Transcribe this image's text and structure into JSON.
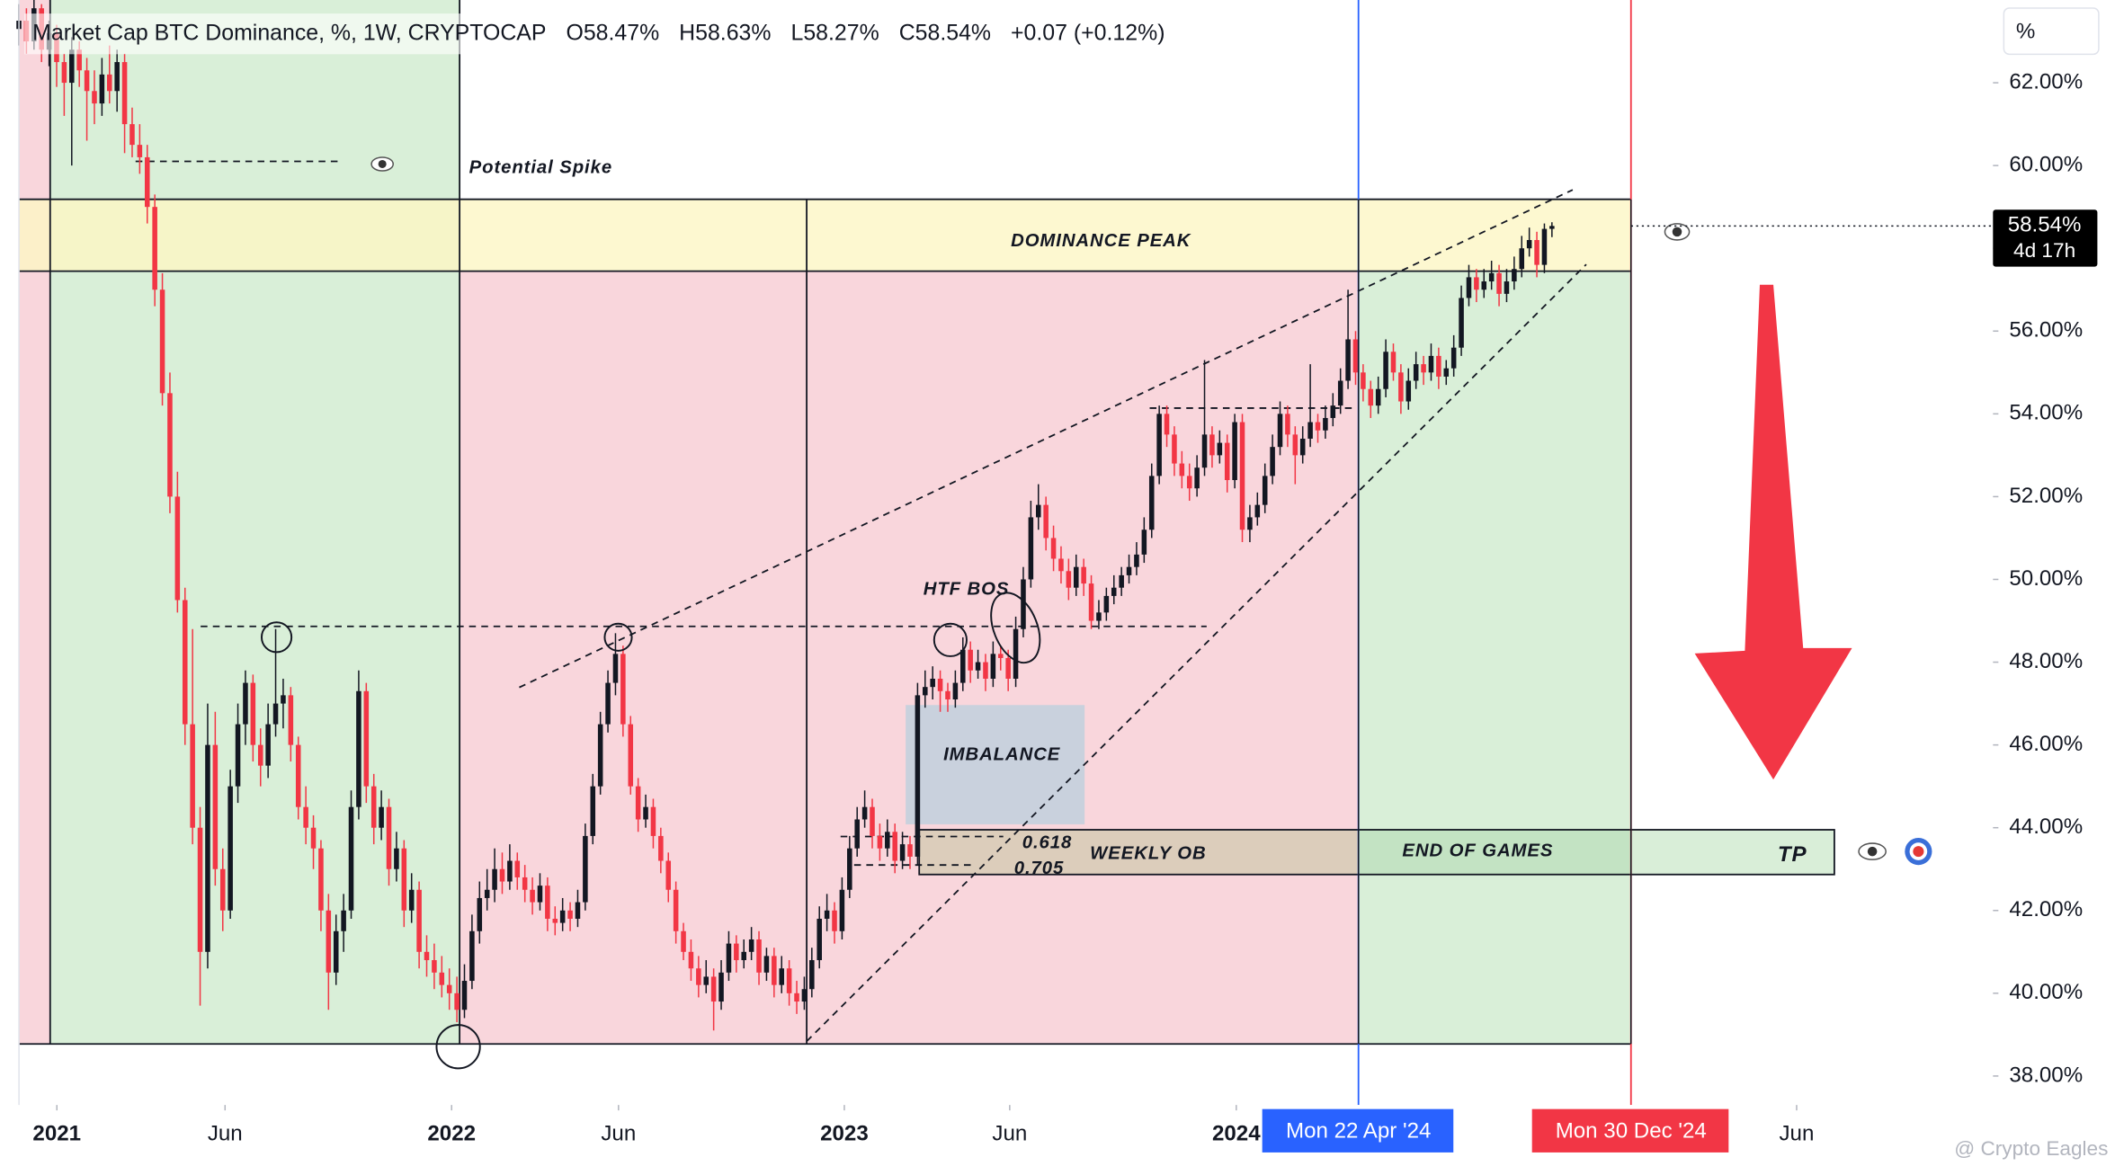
{
  "chart_data": {
    "type": "candlestick",
    "title": "Market Cap BTC Dominance, %, 1W, CRYPTOCAP",
    "ohlc_labels": [
      "O58.47%",
      "H58.63%",
      "L58.27%",
      "C58.54%",
      "+0.07 (+0.12%)"
    ],
    "y_unit": "%",
    "last_price": {
      "value": 58.54,
      "label": "58.54%"
    },
    "countdown": "4d 17h",
    "annotations": [
      "Potential Spike",
      "DOMINANCE PEAK",
      "HTF BOS",
      "IMBALANCE",
      "0.618",
      "0.705",
      "WEEKLY OB",
      "END OF GAMES",
      "TP"
    ],
    "date_markers": [
      "Mon 22 Apr '24",
      "Mon 30 Dec '24"
    ],
    "watermark": "@ Crypto Eagles",
    "up_color": "#131722",
    "down_color": "#f23645",
    "ylim": [
      37.3,
      64
    ],
    "yticks": [
      {
        "value": 38,
        "label": "38.00%"
      },
      {
        "value": 40,
        "label": "40.00%"
      },
      {
        "value": 42,
        "label": "42.00%"
      },
      {
        "value": 44,
        "label": "44.00%"
      },
      {
        "value": 46,
        "label": "46.00%"
      },
      {
        "value": 48,
        "label": "48.00%"
      },
      {
        "value": 50,
        "label": "50.00%"
      },
      {
        "value": 52,
        "label": "52.00%"
      },
      {
        "value": 54,
        "label": "54.00%"
      },
      {
        "value": 56,
        "label": "56.00%"
      },
      {
        "value": 58,
        "label": "58.00%"
      },
      {
        "value": 60,
        "label": "60.00%"
      },
      {
        "value": 62,
        "label": "62.00%"
      }
    ],
    "xlim": [
      -2.5,
      261.4
    ],
    "xticks": [
      {
        "value": 5.03,
        "label": "2021"
      },
      {
        "value": 27.3,
        "label": "Jun"
      },
      {
        "value": 57.3,
        "label": "2022"
      },
      {
        "value": 79.4,
        "label": "Jun"
      },
      {
        "value": 109.3,
        "label": "2023"
      },
      {
        "value": 131.2,
        "label": "Jun"
      },
      {
        "value": 161.2,
        "label": "2024"
      },
      {
        "value": 235.4,
        "label": "Jun"
      }
    ],
    "candles": [
      [
        63.3,
        63.9,
        62.9,
        63.5
      ],
      [
        63.5,
        63.8,
        62.7,
        63.0
      ],
      [
        63.0,
        64.0,
        62.8,
        63.8
      ],
      [
        63.8,
        63.9,
        62.5,
        62.8
      ],
      [
        62.8,
        63.5,
        62.4,
        63.2
      ],
      [
        63.2,
        63.4,
        61.9,
        62.5
      ],
      [
        62.5,
        62.7,
        61.2,
        62.0
      ],
      [
        62.0,
        63.1,
        60.0,
        62.8
      ],
      [
        62.8,
        63.0,
        61.9,
        62.3
      ],
      [
        62.3,
        62.6,
        60.6,
        61.8
      ],
      [
        61.8,
        62.3,
        61.0,
        61.5
      ],
      [
        61.5,
        62.6,
        61.2,
        62.2
      ],
      [
        62.2,
        62.9,
        61.5,
        61.8
      ],
      [
        61.8,
        62.8,
        61.3,
        62.5
      ],
      [
        62.5,
        62.7,
        60.3,
        61.0
      ],
      [
        61.0,
        61.4,
        60.2,
        60.5
      ],
      [
        60.5,
        61.0,
        59.8,
        60.2
      ],
      [
        60.2,
        60.5,
        58.6,
        59.0
      ],
      [
        59.0,
        59.3,
        56.6,
        57.0
      ],
      [
        57.0,
        57.4,
        54.2,
        54.5
      ],
      [
        54.5,
        55.0,
        51.6,
        52.0
      ],
      [
        52.0,
        52.6,
        49.2,
        49.5
      ],
      [
        49.5,
        49.8,
        46.0,
        46.5
      ],
      [
        46.5,
        48.8,
        43.6,
        44.0
      ],
      [
        44.0,
        44.5,
        39.7,
        41.0
      ],
      [
        41.0,
        47.0,
        40.6,
        46.0
      ],
      [
        46.0,
        46.8,
        42.6,
        43.0
      ],
      [
        43.0,
        43.5,
        41.5,
        42.0
      ],
      [
        42.0,
        45.4,
        41.8,
        45.0
      ],
      [
        45.0,
        47.0,
        44.6,
        46.5
      ],
      [
        46.5,
        47.8,
        46.0,
        47.5
      ],
      [
        47.5,
        47.7,
        45.6,
        46.0
      ],
      [
        46.0,
        46.4,
        45.0,
        45.5
      ],
      [
        45.5,
        47.0,
        45.2,
        46.5
      ],
      [
        46.5,
        48.8,
        46.2,
        47.0
      ],
      [
        47.0,
        47.6,
        46.4,
        47.2
      ],
      [
        47.2,
        47.4,
        45.6,
        46.0
      ],
      [
        46.0,
        46.2,
        44.2,
        44.5
      ],
      [
        44.5,
        45.0,
        43.6,
        44.0
      ],
      [
        44.0,
        44.3,
        43.0,
        43.5
      ],
      [
        43.5,
        43.7,
        41.5,
        42.0
      ],
      [
        42.0,
        42.4,
        39.6,
        40.5
      ],
      [
        40.5,
        41.9,
        40.2,
        41.5
      ],
      [
        41.5,
        42.4,
        41.0,
        42.0
      ],
      [
        42.0,
        44.9,
        41.8,
        44.5
      ],
      [
        44.5,
        47.8,
        44.2,
        47.3
      ],
      [
        47.3,
        47.5,
        44.6,
        45.0
      ],
      [
        45.0,
        45.3,
        43.6,
        44.0
      ],
      [
        44.0,
        44.9,
        43.7,
        44.5
      ],
      [
        44.5,
        44.7,
        42.6,
        43.0
      ],
      [
        43.0,
        43.9,
        42.7,
        43.5
      ],
      [
        43.5,
        43.7,
        41.6,
        42.0
      ],
      [
        42.0,
        42.9,
        41.7,
        42.5
      ],
      [
        42.5,
        42.7,
        40.6,
        41.0
      ],
      [
        41.0,
        41.4,
        40.4,
        40.8
      ],
      [
        40.8,
        41.2,
        40.1,
        40.5
      ],
      [
        40.5,
        40.9,
        39.9,
        40.2
      ],
      [
        40.2,
        40.6,
        39.6,
        40.0
      ],
      [
        40.0,
        40.4,
        39.3,
        39.6
      ],
      [
        39.6,
        40.7,
        39.4,
        40.3
      ],
      [
        40.3,
        41.9,
        40.1,
        41.5
      ],
      [
        41.5,
        42.7,
        41.2,
        42.3
      ],
      [
        42.3,
        43.0,
        42.0,
        42.5
      ],
      [
        42.5,
        43.5,
        42.2,
        43.0
      ],
      [
        43.0,
        43.4,
        42.4,
        42.7
      ],
      [
        42.7,
        43.6,
        42.5,
        43.2
      ],
      [
        43.2,
        43.4,
        42.5,
        42.8
      ],
      [
        42.8,
        43.1,
        42.2,
        42.5
      ],
      [
        42.5,
        42.8,
        41.9,
        42.2
      ],
      [
        42.2,
        42.9,
        42.0,
        42.6
      ],
      [
        42.6,
        42.8,
        41.5,
        41.8
      ],
      [
        41.8,
        42.1,
        41.4,
        41.7
      ],
      [
        41.7,
        42.3,
        41.5,
        42.0
      ],
      [
        42.0,
        42.2,
        41.5,
        41.8
      ],
      [
        41.8,
        42.5,
        41.6,
        42.2
      ],
      [
        42.2,
        44.1,
        42.0,
        43.8
      ],
      [
        43.8,
        45.3,
        43.6,
        45.0
      ],
      [
        45.0,
        46.8,
        44.8,
        46.5
      ],
      [
        46.5,
        47.8,
        46.3,
        47.5
      ],
      [
        47.5,
        48.7,
        47.2,
        48.2
      ],
      [
        48.2,
        48.4,
        46.2,
        46.5
      ],
      [
        46.5,
        46.7,
        44.8,
        45.0
      ],
      [
        45.0,
        45.2,
        43.9,
        44.2
      ],
      [
        44.2,
        44.8,
        44.0,
        44.5
      ],
      [
        44.5,
        44.7,
        43.5,
        43.8
      ],
      [
        43.8,
        44.0,
        42.9,
        43.2
      ],
      [
        43.2,
        43.4,
        42.2,
        42.5
      ],
      [
        42.5,
        42.7,
        41.2,
        41.5
      ],
      [
        41.5,
        41.7,
        40.8,
        41.0
      ],
      [
        41.0,
        41.3,
        40.3,
        40.6
      ],
      [
        40.6,
        40.9,
        39.9,
        40.2
      ],
      [
        40.2,
        40.8,
        40.0,
        40.4
      ],
      [
        40.4,
        40.6,
        39.1,
        39.8
      ],
      [
        39.8,
        40.8,
        39.6,
        40.5
      ],
      [
        40.5,
        41.5,
        40.3,
        41.2
      ],
      [
        41.2,
        41.4,
        40.5,
        40.8
      ],
      [
        40.8,
        41.3,
        40.6,
        41.0
      ],
      [
        41.0,
        41.6,
        40.8,
        41.3
      ],
      [
        41.3,
        41.5,
        40.2,
        40.5
      ],
      [
        40.5,
        41.1,
        40.3,
        40.9
      ],
      [
        40.9,
        41.1,
        39.9,
        40.2
      ],
      [
        40.2,
        40.9,
        40.0,
        40.6
      ],
      [
        40.6,
        40.8,
        39.7,
        40.0
      ],
      [
        40.0,
        40.3,
        39.5,
        39.8
      ],
      [
        39.8,
        40.4,
        39.6,
        40.1
      ],
      [
        40.1,
        41.1,
        39.9,
        40.8
      ],
      [
        40.8,
        42.1,
        40.6,
        41.8
      ],
      [
        41.8,
        42.4,
        41.5,
        42.0
      ],
      [
        42.0,
        42.2,
        41.2,
        41.5
      ],
      [
        41.5,
        42.8,
        41.3,
        42.5
      ],
      [
        42.5,
        43.8,
        42.3,
        43.5
      ],
      [
        43.5,
        44.5,
        43.3,
        44.2
      ],
      [
        44.2,
        44.9,
        44.0,
        44.5
      ],
      [
        44.5,
        44.7,
        43.5,
        43.8
      ],
      [
        43.8,
        44.1,
        43.2,
        43.5
      ],
      [
        43.5,
        44.2,
        43.3,
        43.9
      ],
      [
        43.9,
        44.1,
        42.9,
        43.2
      ],
      [
        43.2,
        43.9,
        43.0,
        43.6
      ],
      [
        43.6,
        43.8,
        43.0,
        43.3
      ],
      [
        43.3,
        47.5,
        43.1,
        47.2
      ],
      [
        47.2,
        47.8,
        46.9,
        47.4
      ],
      [
        47.4,
        47.9,
        47.1,
        47.6
      ],
      [
        47.6,
        47.8,
        46.8,
        47.3
      ],
      [
        47.3,
        47.5,
        46.8,
        47.1
      ],
      [
        47.1,
        47.8,
        46.9,
        47.5
      ],
      [
        47.5,
        48.6,
        47.3,
        48.3
      ],
      [
        48.3,
        48.5,
        47.5,
        47.8
      ],
      [
        47.8,
        48.3,
        47.6,
        48.0
      ],
      [
        48.0,
        48.2,
        47.3,
        47.6
      ],
      [
        47.6,
        48.5,
        47.4,
        48.2
      ],
      [
        48.2,
        48.4,
        47.8,
        48.1
      ],
      [
        48.1,
        48.3,
        47.3,
        47.6
      ],
      [
        47.6,
        49.1,
        47.4,
        48.8
      ],
      [
        48.8,
        50.3,
        48.6,
        50.0
      ],
      [
        50.0,
        51.9,
        49.8,
        51.5
      ],
      [
        51.5,
        52.3,
        51.2,
        51.8
      ],
      [
        51.8,
        52.0,
        50.7,
        51.0
      ],
      [
        51.0,
        51.3,
        50.2,
        50.5
      ],
      [
        50.5,
        50.8,
        49.9,
        50.2
      ],
      [
        50.2,
        50.5,
        49.5,
        49.8
      ],
      [
        49.8,
        50.6,
        49.6,
        50.3
      ],
      [
        50.3,
        50.5,
        49.6,
        49.9
      ],
      [
        49.9,
        50.1,
        48.8,
        49.0
      ],
      [
        49.0,
        49.5,
        48.8,
        49.2
      ],
      [
        49.2,
        49.8,
        49.0,
        49.6
      ],
      [
        49.6,
        50.1,
        49.4,
        49.8
      ],
      [
        49.8,
        50.3,
        49.6,
        50.1
      ],
      [
        50.1,
        50.6,
        49.9,
        50.3
      ],
      [
        50.3,
        50.9,
        50.1,
        50.6
      ],
      [
        50.6,
        51.5,
        50.4,
        51.2
      ],
      [
        51.2,
        52.8,
        51.0,
        52.5
      ],
      [
        52.5,
        54.2,
        52.3,
        54.0
      ],
      [
        54.0,
        54.2,
        53.2,
        53.5
      ],
      [
        53.5,
        53.7,
        52.5,
        52.8
      ],
      [
        52.8,
        53.1,
        52.2,
        52.5
      ],
      [
        52.5,
        52.8,
        51.9,
        52.2
      ],
      [
        52.2,
        53.0,
        52.0,
        52.7
      ],
      [
        52.7,
        55.3,
        52.5,
        53.5
      ],
      [
        53.5,
        53.7,
        52.7,
        53.0
      ],
      [
        53.0,
        53.6,
        52.8,
        53.3
      ],
      [
        53.3,
        53.5,
        52.1,
        52.4
      ],
      [
        52.4,
        54.0,
        52.2,
        53.8
      ],
      [
        53.8,
        54.0,
        50.9,
        51.2
      ],
      [
        51.2,
        51.8,
        50.9,
        51.5
      ],
      [
        51.5,
        52.1,
        51.3,
        51.8
      ],
      [
        51.8,
        52.8,
        51.6,
        52.5
      ],
      [
        52.5,
        53.5,
        52.3,
        53.2
      ],
      [
        53.2,
        54.3,
        53.0,
        54.0
      ],
      [
        54.0,
        54.2,
        53.2,
        53.5
      ],
      [
        53.5,
        53.7,
        52.3,
        53.0
      ],
      [
        53.0,
        53.7,
        52.8,
        53.4
      ],
      [
        53.4,
        55.2,
        53.2,
        53.8
      ],
      [
        53.8,
        54.0,
        53.3,
        53.6
      ],
      [
        53.6,
        54.2,
        53.4,
        53.9
      ],
      [
        53.9,
        54.5,
        53.7,
        54.2
      ],
      [
        54.2,
        55.1,
        54.0,
        54.8
      ],
      [
        54.8,
        57.0,
        54.6,
        55.8
      ],
      [
        55.8,
        56.0,
        54.7,
        55.0
      ],
      [
        55.0,
        55.2,
        54.3,
        54.6
      ],
      [
        54.6,
        54.8,
        53.9,
        54.2
      ],
      [
        54.2,
        54.9,
        54.0,
        54.6
      ],
      [
        54.6,
        55.8,
        54.4,
        55.5
      ],
      [
        55.5,
        55.7,
        54.8,
        55.0
      ],
      [
        55.0,
        55.2,
        54.0,
        54.3
      ],
      [
        54.3,
        55.1,
        54.1,
        54.8
      ],
      [
        54.8,
        55.5,
        54.6,
        55.2
      ],
      [
        55.2,
        55.4,
        54.7,
        55.0
      ],
      [
        55.0,
        55.7,
        54.8,
        55.4
      ],
      [
        55.4,
        55.6,
        54.6,
        54.9
      ],
      [
        54.9,
        55.3,
        54.7,
        55.1
      ],
      [
        55.1,
        55.9,
        54.9,
        55.6
      ],
      [
        55.6,
        57.1,
        55.4,
        56.8
      ],
      [
        56.8,
        57.6,
        56.6,
        57.3
      ],
      [
        57.3,
        57.5,
        56.7,
        57.0
      ],
      [
        57.0,
        57.5,
        56.8,
        57.2
      ],
      [
        57.2,
        57.7,
        57.0,
        57.4
      ],
      [
        57.4,
        57.6,
        56.6,
        56.9
      ],
      [
        56.9,
        57.5,
        56.7,
        57.2
      ],
      [
        57.2,
        57.8,
        57.0,
        57.5
      ],
      [
        57.5,
        58.3,
        57.3,
        58.0
      ],
      [
        58.0,
        58.5,
        57.8,
        58.2
      ],
      [
        58.2,
        58.4,
        57.3,
        57.6
      ],
      [
        57.6,
        58.6,
        57.4,
        58.47
      ],
      [
        58.47,
        58.63,
        58.27,
        58.54
      ]
    ]
  }
}
